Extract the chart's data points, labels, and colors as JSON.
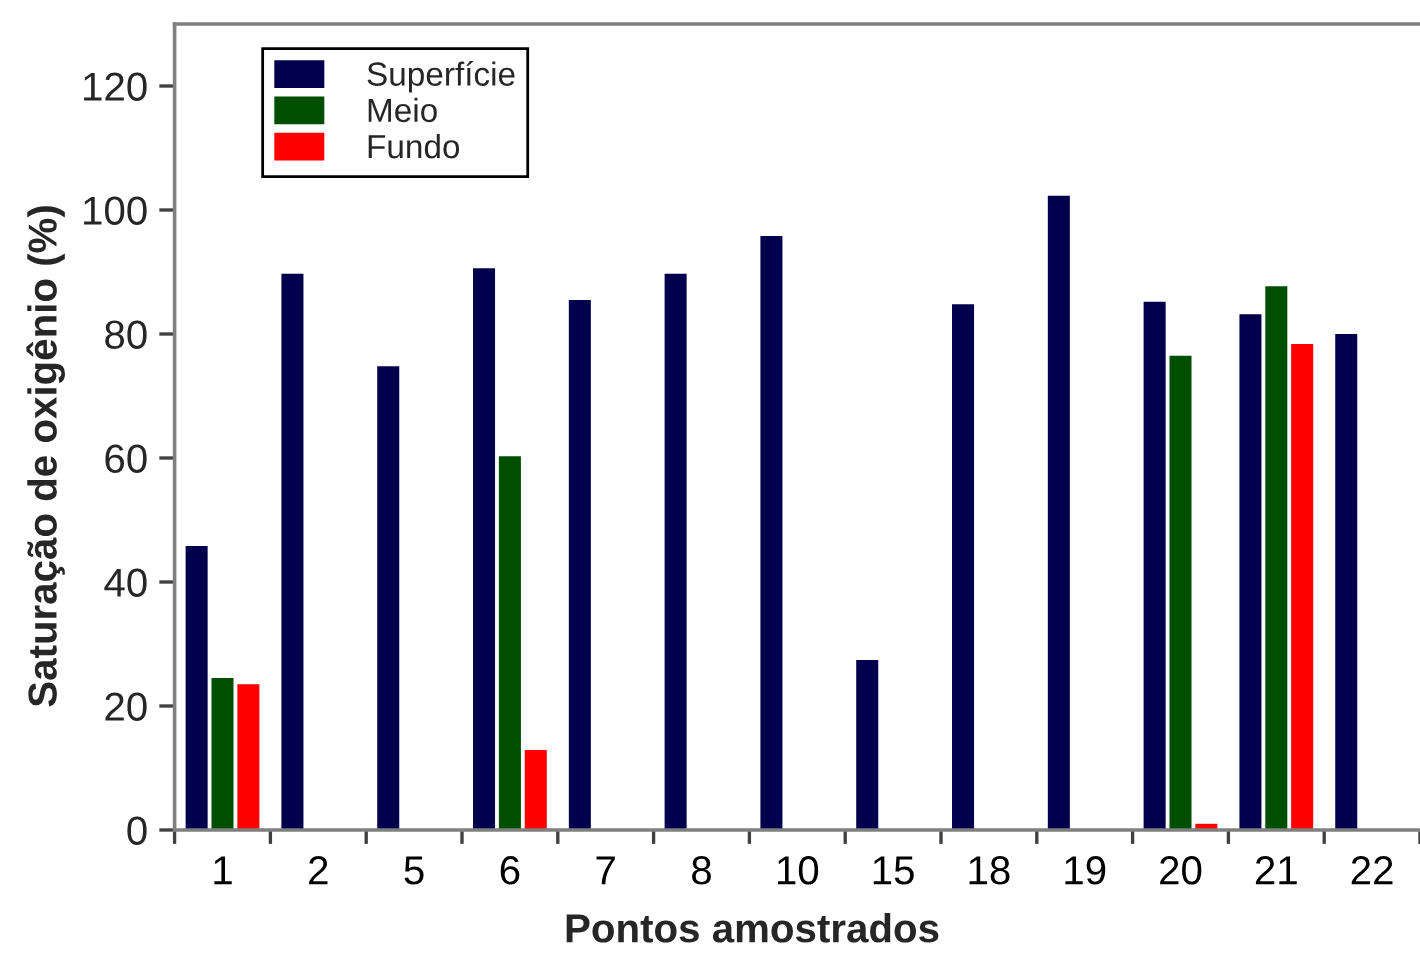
{
  "chart_data": {
    "type": "bar",
    "xlabel": "Pontos amostrados",
    "ylabel": "Saturação de oxigênio (%)",
    "categories": [
      "1",
      "2",
      "5",
      "6",
      "7",
      "8",
      "10",
      "15",
      "18",
      "19",
      "20",
      "21",
      "22"
    ],
    "series": [
      {
        "name": "Superfície",
        "color": "#00004d",
        "values": [
          45.8,
          89.7,
          74.8,
          90.6,
          85.5,
          89.7,
          95.8,
          27.4,
          84.8,
          102.3,
          85.2,
          83.2,
          80.0
        ]
      },
      {
        "name": "Meio",
        "color": "#004f00",
        "values": [
          24.5,
          null,
          null,
          60.3,
          null,
          null,
          null,
          null,
          null,
          null,
          76.5,
          87.7,
          null
        ]
      },
      {
        "name": "Fundo",
        "color": "#ff0000",
        "values": [
          23.5,
          null,
          null,
          12.9,
          null,
          null,
          null,
          null,
          null,
          null,
          1.0,
          78.4,
          null
        ]
      }
    ],
    "ylim": [
      0,
      130
    ],
    "yticks": [
      0,
      20,
      40,
      60,
      80,
      100,
      120
    ],
    "legend": "top left"
  }
}
